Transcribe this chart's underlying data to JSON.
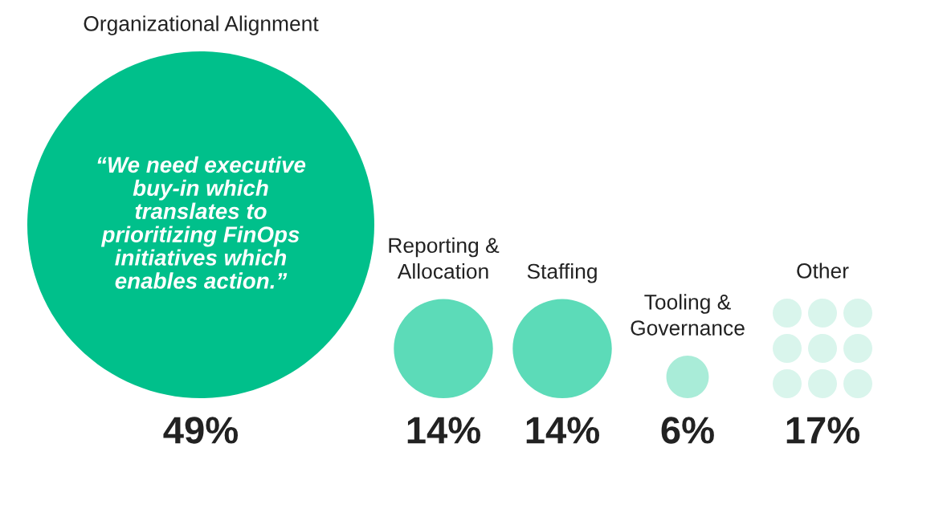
{
  "chart_data": {
    "type": "other",
    "categories": [
      "Organizational Alignment",
      "Reporting &\nAllocation",
      "Staffing",
      "Tooling &\nGovernance",
      "Other"
    ],
    "series": [
      {
        "type": "bubble",
        "values": [
          49,
          14,
          14,
          6,
          null
        ],
        "colors": [
          "#00c08b",
          "#5cdbb8",
          "#5cdbb8",
          "#a9ecd8",
          null
        ],
        "value_labels": [
          "49%",
          "14%",
          "14%",
          "6%",
          null
        ]
      },
      {
        "type": "other",
        "color": "#d9f5ec",
        "values": [
          null,
          null,
          null,
          null,
          17
        ],
        "value_labels": [
          null,
          null,
          null,
          null,
          "17%"
        ]
      }
    ],
    "annotations": [
      "“We need executive\nbuy-in which\ntranslates to\nprioritizing FinOps\ninitiatives which\nenables action.”"
    ]
  }
}
